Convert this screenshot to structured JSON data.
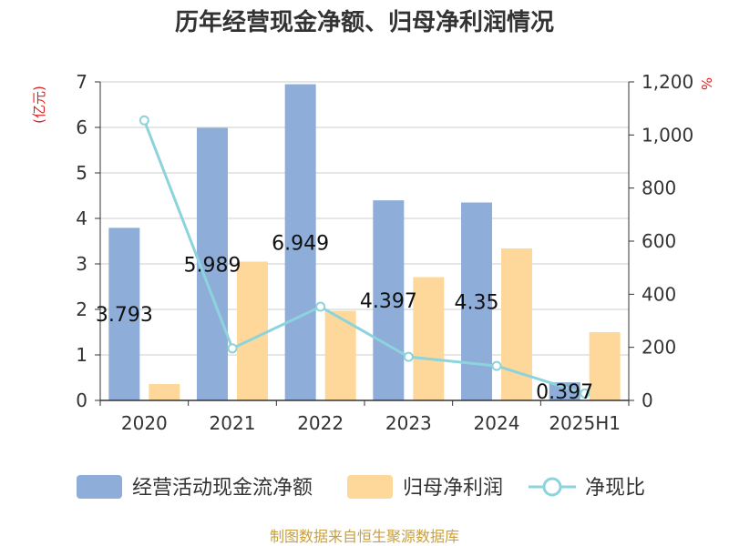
{
  "chart_data": {
    "type": "bar",
    "title": "历年经营现金净额、归母净利润情况",
    "categories": [
      "2020",
      "2021",
      "2022",
      "2023",
      "2024",
      "2025H1"
    ],
    "y_left": {
      "unit": "(亿元)",
      "ticks": [
        "0",
        "1",
        "2",
        "3",
        "4",
        "5",
        "6",
        "7"
      ],
      "range": [
        0,
        7
      ]
    },
    "y_right": {
      "unit": "%",
      "ticks": [
        "0",
        "200",
        "400",
        "600",
        "800",
        "1,000",
        "1,200"
      ],
      "range": [
        0,
        1200
      ]
    },
    "grid": true,
    "series": [
      {
        "name": "经营活动现金流净额",
        "type": "bar",
        "axis": "left",
        "color": "#8eadd9",
        "values": [
          3.793,
          5.989,
          6.949,
          4.397,
          4.35,
          0.397
        ],
        "labels": [
          "3.793",
          "5.989",
          "6.949",
          "4.397",
          "4.35",
          "0.397"
        ]
      },
      {
        "name": "归母净利润",
        "type": "bar",
        "axis": "left",
        "color": "#fdd89a",
        "values": [
          0.36,
          3.05,
          1.97,
          2.71,
          3.34,
          1.5
        ]
      },
      {
        "name": "净现比",
        "type": "line",
        "axis": "right",
        "color": "#8dd3dc",
        "values": [
          1055,
          196,
          353,
          164,
          130,
          26
        ]
      }
    ],
    "legend_position": "bottom",
    "source": "制图数据来自恒生聚源数据库"
  }
}
